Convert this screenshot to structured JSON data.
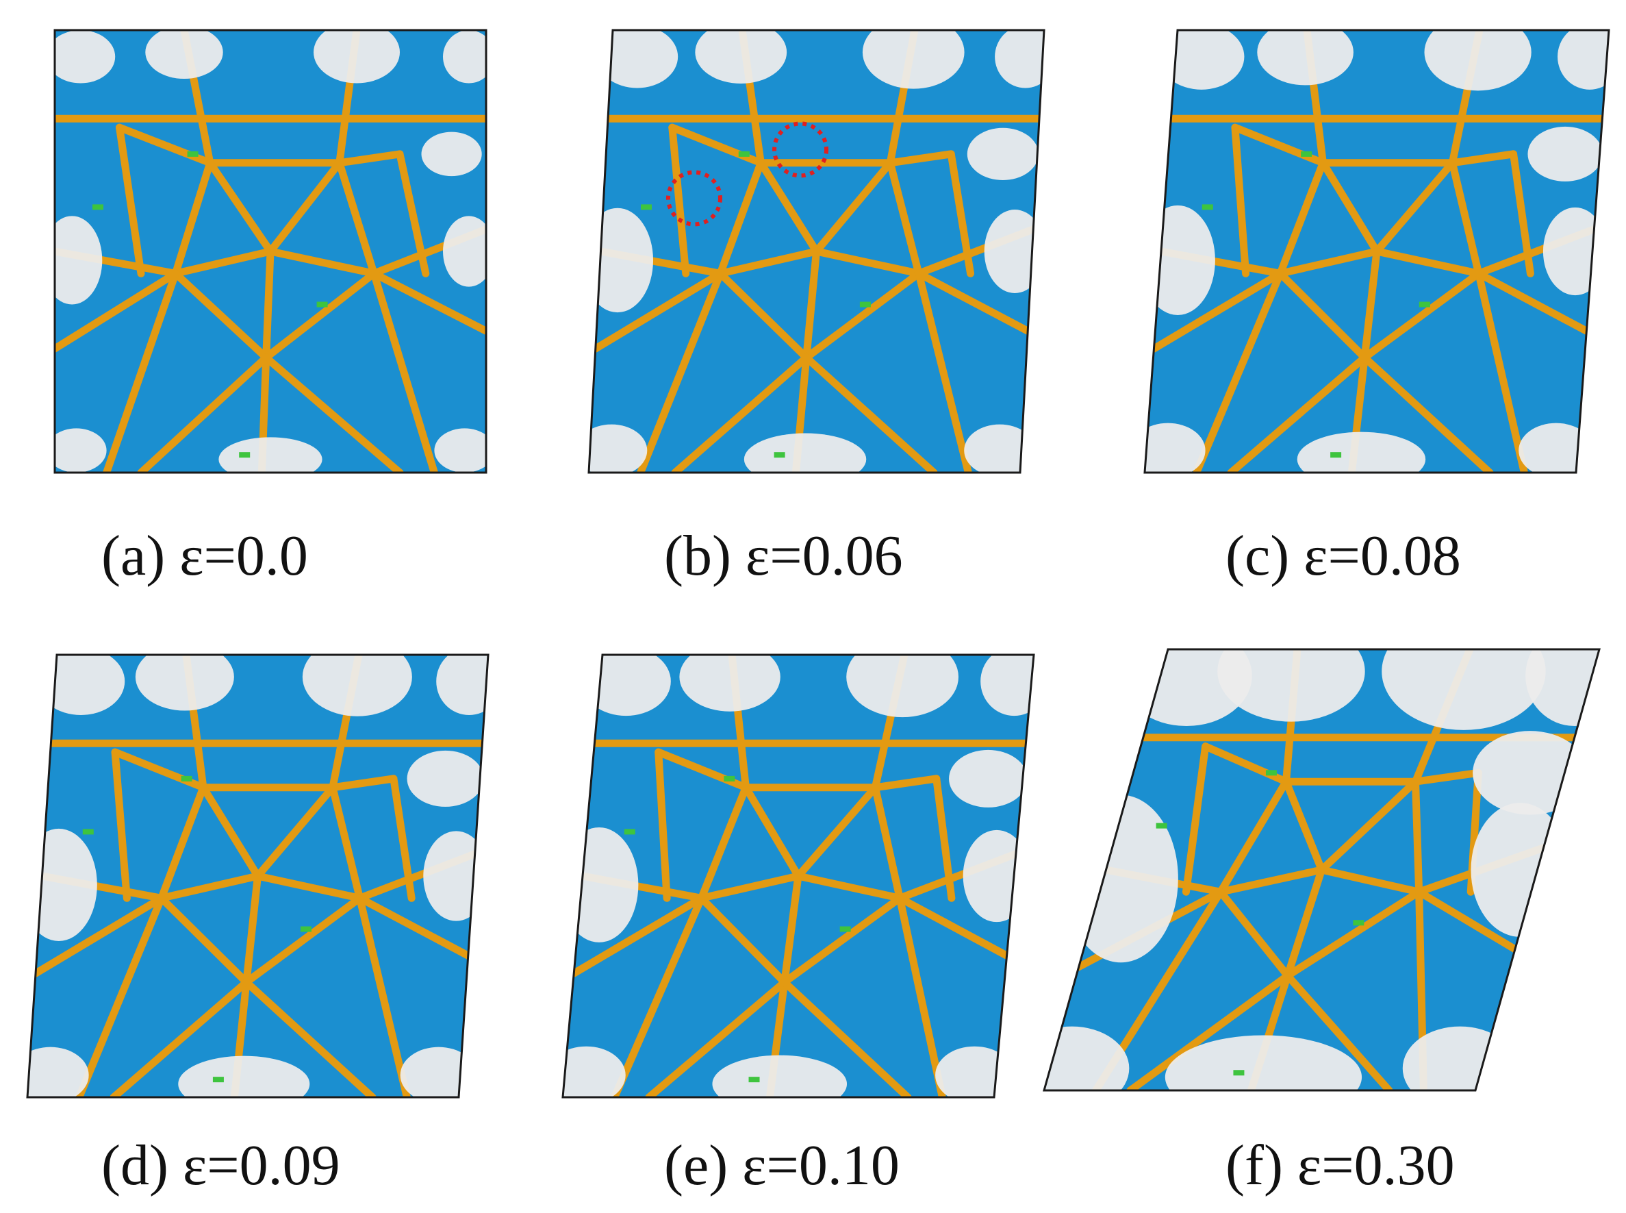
{
  "figure": {
    "colors": {
      "grain": "#1b8fd0",
      "boundary": "#e39a12",
      "amorphous": "#ececec",
      "outline": "#1a1a1a",
      "defect_green": "#3ec43e",
      "marker_red": "#e02020"
    },
    "panels": [
      {
        "id": "a",
        "caption": "(a) ε=0.0",
        "strain": 0.0,
        "markers": false
      },
      {
        "id": "b",
        "caption": "(b) ε=0.06",
        "strain": 0.06,
        "markers": true
      },
      {
        "id": "c",
        "caption": "(c) ε=0.08",
        "strain": 0.08,
        "markers": false
      },
      {
        "id": "d",
        "caption": "(d) ε=0.09",
        "strain": 0.09,
        "markers": false
      },
      {
        "id": "e",
        "caption": "(e) ε=0.10",
        "strain": 0.1,
        "markers": false
      },
      {
        "id": "f",
        "caption": "(f) ε=0.30",
        "strain": 0.3,
        "markers": false
      }
    ]
  }
}
